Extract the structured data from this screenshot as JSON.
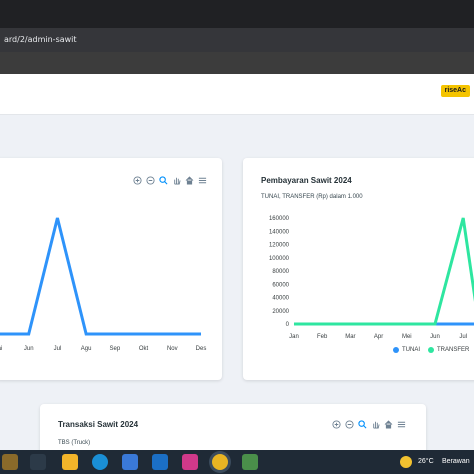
{
  "browser": {
    "url_fragment": "ard/2/admin-sawit"
  },
  "header": {
    "badge_label": "riseAc"
  },
  "left_chart": {
    "chart_data": {
      "type": "line",
      "categories": [
        "Mei",
        "Jun",
        "Jul",
        "Agu",
        "Sep",
        "Okt",
        "Nov",
        "Des"
      ],
      "visible_tick_labels": [
        "ai",
        "Jun",
        "Jul",
        "Agu",
        "Sep",
        "Okt",
        "Nov",
        "Des"
      ],
      "series": [
        {
          "values": [
            0,
            0,
            160000,
            0,
            0,
            0,
            0,
            0
          ],
          "color": "#2e93fa"
        }
      ],
      "ylim": [
        0,
        160000
      ],
      "grid": false
    }
  },
  "right_chart": {
    "title": "Pembayaran Sawit 2024",
    "subtitle": "TUNAI, TRANSFER (Rp) dalam 1.000",
    "chart_data": {
      "type": "line",
      "title": "Pembayaran Sawit 2024",
      "subtitle": "TUNAI, TRANSFER (Rp) dalam 1.000",
      "categories": [
        "Jan",
        "Feb",
        "Mar",
        "Apr",
        "Mei",
        "Jun",
        "Jul"
      ],
      "y_ticks": [
        "160000",
        "140000",
        "120000",
        "100000",
        "80000",
        "60000",
        "40000",
        "20000",
        "0"
      ],
      "ylim": [
        0,
        160000
      ],
      "series": [
        {
          "name": "TUNAI",
          "values": [
            0,
            0,
            0,
            0,
            0,
            0,
            0
          ],
          "color": "#2e93fa"
        },
        {
          "name": "TRANSFER",
          "values": [
            0,
            0,
            0,
            0,
            0,
            0,
            160000
          ],
          "color": "#2ee6a0"
        }
      ],
      "legend": "bottom-right",
      "grid": false
    },
    "legend": [
      "TUNAI",
      "TRANSFER"
    ]
  },
  "bottom_card": {
    "title": "Transaksi Sawit 2024",
    "subtitle": "TBS (Truck)"
  },
  "taskbar": {
    "weather": "26°C",
    "weather_text": "Berawan"
  },
  "icons": [
    "zoom-in-icon",
    "zoom-out-icon",
    "magnifier-icon",
    "pan-hand-icon",
    "home-icon",
    "menu-icon"
  ],
  "colors": {
    "tunai": "#2e93fa",
    "transfer": "#2ee6a0",
    "badge": "#f5c400"
  }
}
